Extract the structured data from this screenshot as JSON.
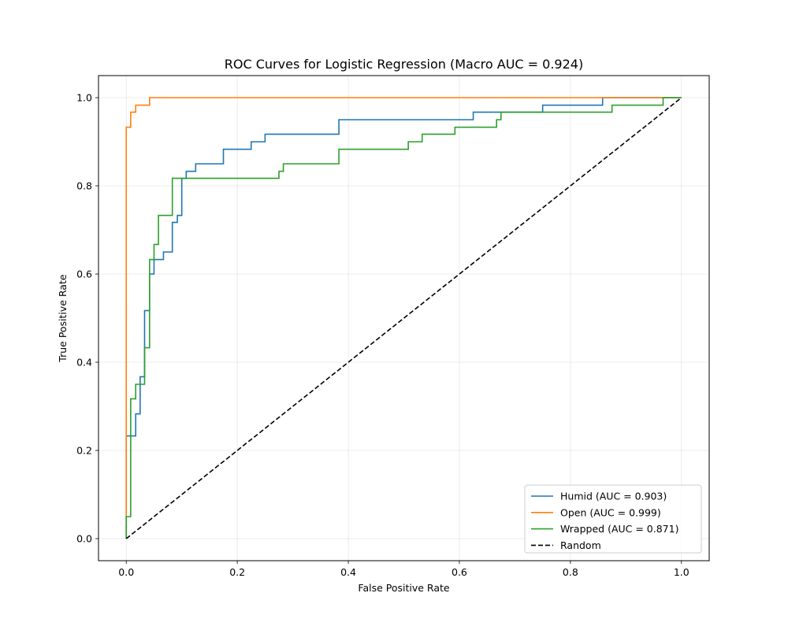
{
  "chart_data": {
    "type": "line",
    "title": "ROC Curves for Logistic Regression (Macro AUC = 0.924)",
    "xlabel": "False Positive Rate",
    "ylabel": "True Positive Rate",
    "xlim": [
      -0.05,
      1.05
    ],
    "ylim": [
      -0.05,
      1.05
    ],
    "xticks": [
      0.0,
      0.2,
      0.4,
      0.6,
      0.8,
      1.0
    ],
    "yticks": [
      0.0,
      0.2,
      0.4,
      0.6,
      0.8,
      1.0
    ],
    "xtick_labels": [
      "0.0",
      "0.2",
      "0.4",
      "0.6",
      "0.8",
      "1.0"
    ],
    "ytick_labels": [
      "0.0",
      "0.2",
      "0.4",
      "0.6",
      "0.8",
      "1.0"
    ],
    "grid": true,
    "legend_position": "lower-right",
    "step": true,
    "series": [
      {
        "name": "Humid (AUC = 0.903)",
        "color": "#1f77b4",
        "x": [
          0.0,
          0.0,
          0.017,
          0.017,
          0.025,
          0.025,
          0.033,
          0.033,
          0.042,
          0.042,
          0.05,
          0.05,
          0.067,
          0.067,
          0.083,
          0.083,
          0.092,
          0.092,
          0.1,
          0.1,
          0.108,
          0.108,
          0.125,
          0.125,
          0.175,
          0.175,
          0.225,
          0.225,
          0.25,
          0.25,
          0.383,
          0.383,
          0.625,
          0.625,
          0.75,
          0.75,
          0.858,
          0.858,
          1.0,
          1.0
        ],
        "y": [
          0.0,
          0.233,
          0.233,
          0.283,
          0.283,
          0.367,
          0.367,
          0.517,
          0.517,
          0.6,
          0.6,
          0.633,
          0.633,
          0.65,
          0.65,
          0.717,
          0.717,
          0.733,
          0.733,
          0.817,
          0.817,
          0.833,
          0.833,
          0.85,
          0.85,
          0.883,
          0.883,
          0.9,
          0.9,
          0.917,
          0.917,
          0.95,
          0.95,
          0.967,
          0.967,
          0.983,
          0.983,
          1.0,
          1.0,
          1.0
        ]
      },
      {
        "name": "Open (AUC = 0.999)",
        "color": "#ff7f0e",
        "x": [
          0.0,
          0.0,
          0.008,
          0.008,
          0.017,
          0.017,
          0.042,
          0.042,
          1.0
        ],
        "y": [
          0.0,
          0.933,
          0.933,
          0.967,
          0.967,
          0.983,
          0.983,
          1.0,
          1.0
        ]
      },
      {
        "name": "Wrapped (AUC = 0.871)",
        "color": "#2ca02c",
        "x": [
          0.0,
          0.0,
          0.008,
          0.008,
          0.017,
          0.017,
          0.033,
          0.033,
          0.042,
          0.042,
          0.05,
          0.05,
          0.058,
          0.058,
          0.083,
          0.083,
          0.275,
          0.275,
          0.283,
          0.283,
          0.383,
          0.383,
          0.508,
          0.508,
          0.533,
          0.533,
          0.592,
          0.592,
          0.667,
          0.667,
          0.675,
          0.675,
          0.875,
          0.875,
          0.967,
          0.967,
          1.0
        ],
        "y": [
          0.0,
          0.05,
          0.05,
          0.317,
          0.317,
          0.35,
          0.35,
          0.433,
          0.433,
          0.633,
          0.633,
          0.667,
          0.667,
          0.733,
          0.733,
          0.817,
          0.817,
          0.833,
          0.833,
          0.85,
          0.85,
          0.883,
          0.883,
          0.9,
          0.9,
          0.917,
          0.917,
          0.933,
          0.933,
          0.95,
          0.95,
          0.967,
          0.967,
          0.983,
          0.983,
          1.0,
          1.0
        ]
      },
      {
        "name": "Random",
        "color": "#000000",
        "dashed": true,
        "x": [
          0.0,
          1.0
        ],
        "y": [
          0.0,
          1.0
        ]
      }
    ]
  }
}
